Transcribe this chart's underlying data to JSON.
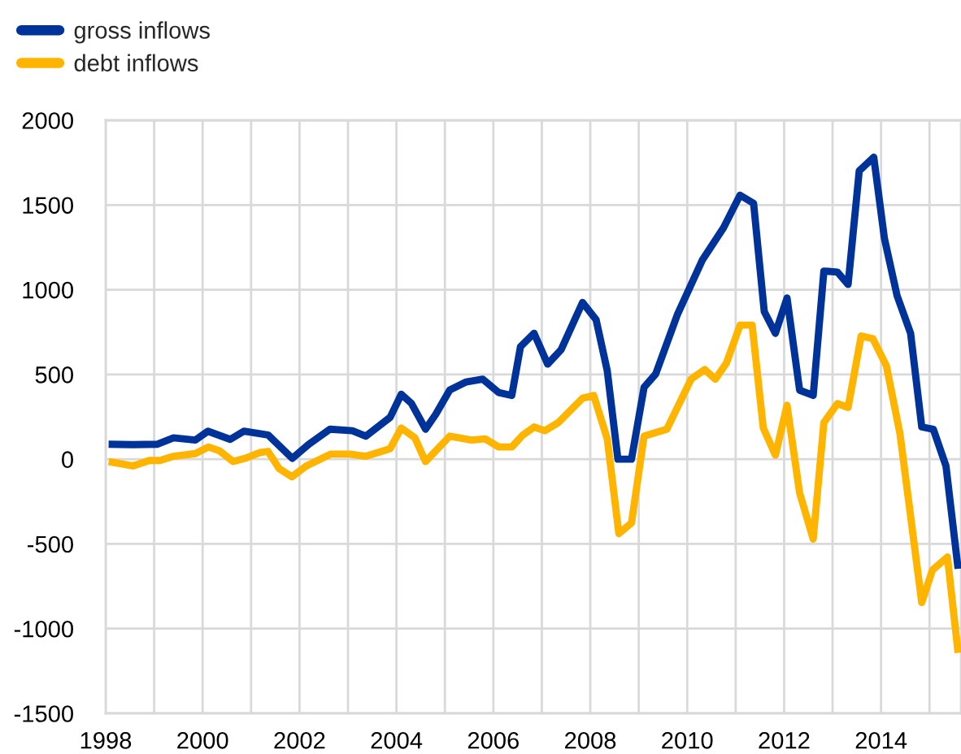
{
  "chart_data": {
    "type": "line",
    "legend": "top left",
    "grid": true,
    "marker": "none",
    "line_style": "solid",
    "xlim": [
      1998,
      2015.65
    ],
    "xticks": [
      1998,
      {
        "value": 1999,
        "label": null
      },
      2000,
      {
        "value": 2001,
        "label": null
      },
      2002,
      {
        "value": 2003,
        "label": null
      },
      2004,
      {
        "value": 2005,
        "label": null
      },
      2006,
      {
        "value": 2007,
        "label": null
      },
      2008,
      {
        "value": 2009,
        "label": null
      },
      2010,
      {
        "value": 2011,
        "label": null
      },
      2012,
      {
        "value": 2013,
        "label": null
      },
      2014,
      {
        "value": 2015,
        "label": null
      }
    ],
    "ylim": [
      -1500,
      2000
    ],
    "yticks": [
      -1500,
      -1000,
      -500,
      0,
      500,
      1000,
      1500,
      2000
    ],
    "series": [
      {
        "name": "gross inflows",
        "color": "#003399",
        "x": [
          1998.06,
          1998.56,
          1999.06,
          1999.4,
          1999.85,
          2000.11,
          2000.57,
          2000.85,
          2001.35,
          2001.85,
          2002.19,
          2002.63,
          2003.09,
          2003.37,
          2003.87,
          2004.1,
          2004.31,
          2004.6,
          2004.81,
          2005.1,
          2005.44,
          2005.78,
          2006.11,
          2006.38,
          2006.56,
          2006.84,
          2007.12,
          2007.4,
          2007.84,
          2008.12,
          2008.35,
          2008.57,
          2008.85,
          2009.11,
          2009.35,
          2009.8,
          2010.31,
          2010.75,
          2011.09,
          2011.37,
          2011.59,
          2011.82,
          2012.06,
          2012.32,
          2012.6,
          2012.82,
          2013.1,
          2013.32,
          2013.55,
          2013.85,
          2014.07,
          2014.33,
          2014.61,
          2014.84,
          2015.08,
          2015.34,
          2015.59
        ],
        "values": [
          88,
          86,
          88,
          126,
          113,
          165,
          117,
          165,
          143,
          5,
          88,
          177,
          168,
          136,
          247,
          383,
          329,
          177,
          264,
          408,
          456,
          472,
          393,
          376,
          664,
          743,
          561,
          647,
          925,
          823,
          522,
          0,
          0,
          424,
          503,
          855,
          1174,
          1366,
          1558,
          1510,
          871,
          743,
          951,
          407,
          376,
          1110,
          1104,
          1031,
          1702,
          1782,
          1302,
          966,
          743,
          190,
          176,
          -40,
          -647
        ]
      },
      {
        "name": "debt inflows",
        "color": "#ffb400",
        "x": [
          1998.06,
          1998.56,
          1998.9,
          1999.12,
          1999.4,
          1999.85,
          2000.12,
          2000.35,
          2000.63,
          2000.91,
          2001.19,
          2001.35,
          2001.58,
          2001.84,
          2002.14,
          2002.64,
          2003.03,
          2003.37,
          2003.87,
          2004.1,
          2004.38,
          2004.6,
          2005.1,
          2005.55,
          2005.83,
          2006.11,
          2006.38,
          2006.61,
          2006.84,
          2007.06,
          2007.34,
          2007.84,
          2008.07,
          2008.35,
          2008.59,
          2008.85,
          2009.11,
          2009.58,
          2010.08,
          2010.36,
          2010.58,
          2010.81,
          2011.09,
          2011.34,
          2011.57,
          2011.82,
          2012.06,
          2012.32,
          2012.6,
          2012.82,
          2013.1,
          2013.32,
          2013.59,
          2013.83,
          2014.11,
          2014.39,
          2014.84,
          2015.06,
          2015.37,
          2015.59
        ],
        "values": [
          -14,
          -40,
          -8,
          -8,
          17,
          33,
          72,
          49,
          -14,
          8,
          40,
          46,
          -56,
          -104,
          -40,
          30,
          30,
          17,
          62,
          184,
          126,
          -14,
          136,
          113,
          120,
          72,
          72,
          143,
          190,
          168,
          216,
          360,
          376,
          120,
          -439,
          -376,
          136,
          177,
          472,
          529,
          472,
          568,
          791,
          791,
          184,
          24,
          318,
          -200,
          -472,
          216,
          328,
          305,
          727,
          711,
          551,
          151,
          -846,
          -654,
          -577,
          -1143
        ]
      }
    ]
  }
}
